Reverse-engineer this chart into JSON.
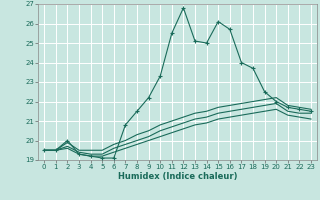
{
  "xlabel": "Humidex (Indice chaleur)",
  "background_color": "#c8e6e0",
  "grid_color": "#ffffff",
  "line_color": "#1a6b5a",
  "xlim": [
    -0.5,
    23.5
  ],
  "ylim": [
    19,
    27
  ],
  "xticks": [
    0,
    1,
    2,
    3,
    4,
    5,
    6,
    7,
    8,
    9,
    10,
    11,
    12,
    13,
    14,
    15,
    16,
    17,
    18,
    19,
    20,
    21,
    22,
    23
  ],
  "yticks": [
    19,
    20,
    21,
    22,
    23,
    24,
    25,
    26,
    27
  ],
  "series": [
    {
      "x": [
        0,
        1,
        2,
        3,
        4,
        5,
        6,
        7,
        8,
        9,
        10,
        11,
        12,
        13,
        14,
        15,
        16,
        17,
        18,
        19,
        20,
        21,
        22,
        23
      ],
      "y": [
        19.5,
        19.5,
        20.0,
        19.3,
        19.2,
        19.1,
        19.1,
        20.8,
        21.5,
        22.2,
        23.3,
        25.5,
        26.8,
        25.1,
        25.0,
        26.1,
        25.7,
        24.0,
        23.7,
        22.5,
        22.0,
        21.7,
        21.6,
        21.5
      ],
      "markers": true
    },
    {
      "x": [
        0,
        1,
        2,
        3,
        4,
        5,
        6,
        7,
        8,
        9,
        10,
        11,
        12,
        13,
        14,
        15,
        16,
        17,
        18,
        19,
        20,
        21,
        22,
        23
      ],
      "y": [
        19.5,
        19.5,
        19.9,
        19.5,
        19.5,
        19.5,
        19.8,
        20.0,
        20.3,
        20.5,
        20.8,
        21.0,
        21.2,
        21.4,
        21.5,
        21.7,
        21.8,
        21.9,
        22.0,
        22.1,
        22.2,
        21.8,
        21.7,
        21.6
      ],
      "markers": false
    },
    {
      "x": [
        0,
        1,
        2,
        3,
        4,
        5,
        6,
        7,
        8,
        9,
        10,
        11,
        12,
        13,
        14,
        15,
        16,
        17,
        18,
        19,
        20,
        21,
        22,
        23
      ],
      "y": [
        19.5,
        19.5,
        19.7,
        19.4,
        19.3,
        19.3,
        19.6,
        19.8,
        20.0,
        20.2,
        20.5,
        20.7,
        20.9,
        21.1,
        21.2,
        21.4,
        21.5,
        21.6,
        21.7,
        21.8,
        21.9,
        21.5,
        21.4,
        21.4
      ],
      "markers": false
    },
    {
      "x": [
        0,
        1,
        2,
        3,
        4,
        5,
        6,
        7,
        8,
        9,
        10,
        11,
        12,
        13,
        14,
        15,
        16,
        17,
        18,
        19,
        20,
        21,
        22,
        23
      ],
      "y": [
        19.5,
        19.5,
        19.6,
        19.3,
        19.2,
        19.2,
        19.4,
        19.6,
        19.8,
        20.0,
        20.2,
        20.4,
        20.6,
        20.8,
        20.9,
        21.1,
        21.2,
        21.3,
        21.4,
        21.5,
        21.6,
        21.3,
        21.2,
        21.1
      ],
      "markers": false
    }
  ]
}
